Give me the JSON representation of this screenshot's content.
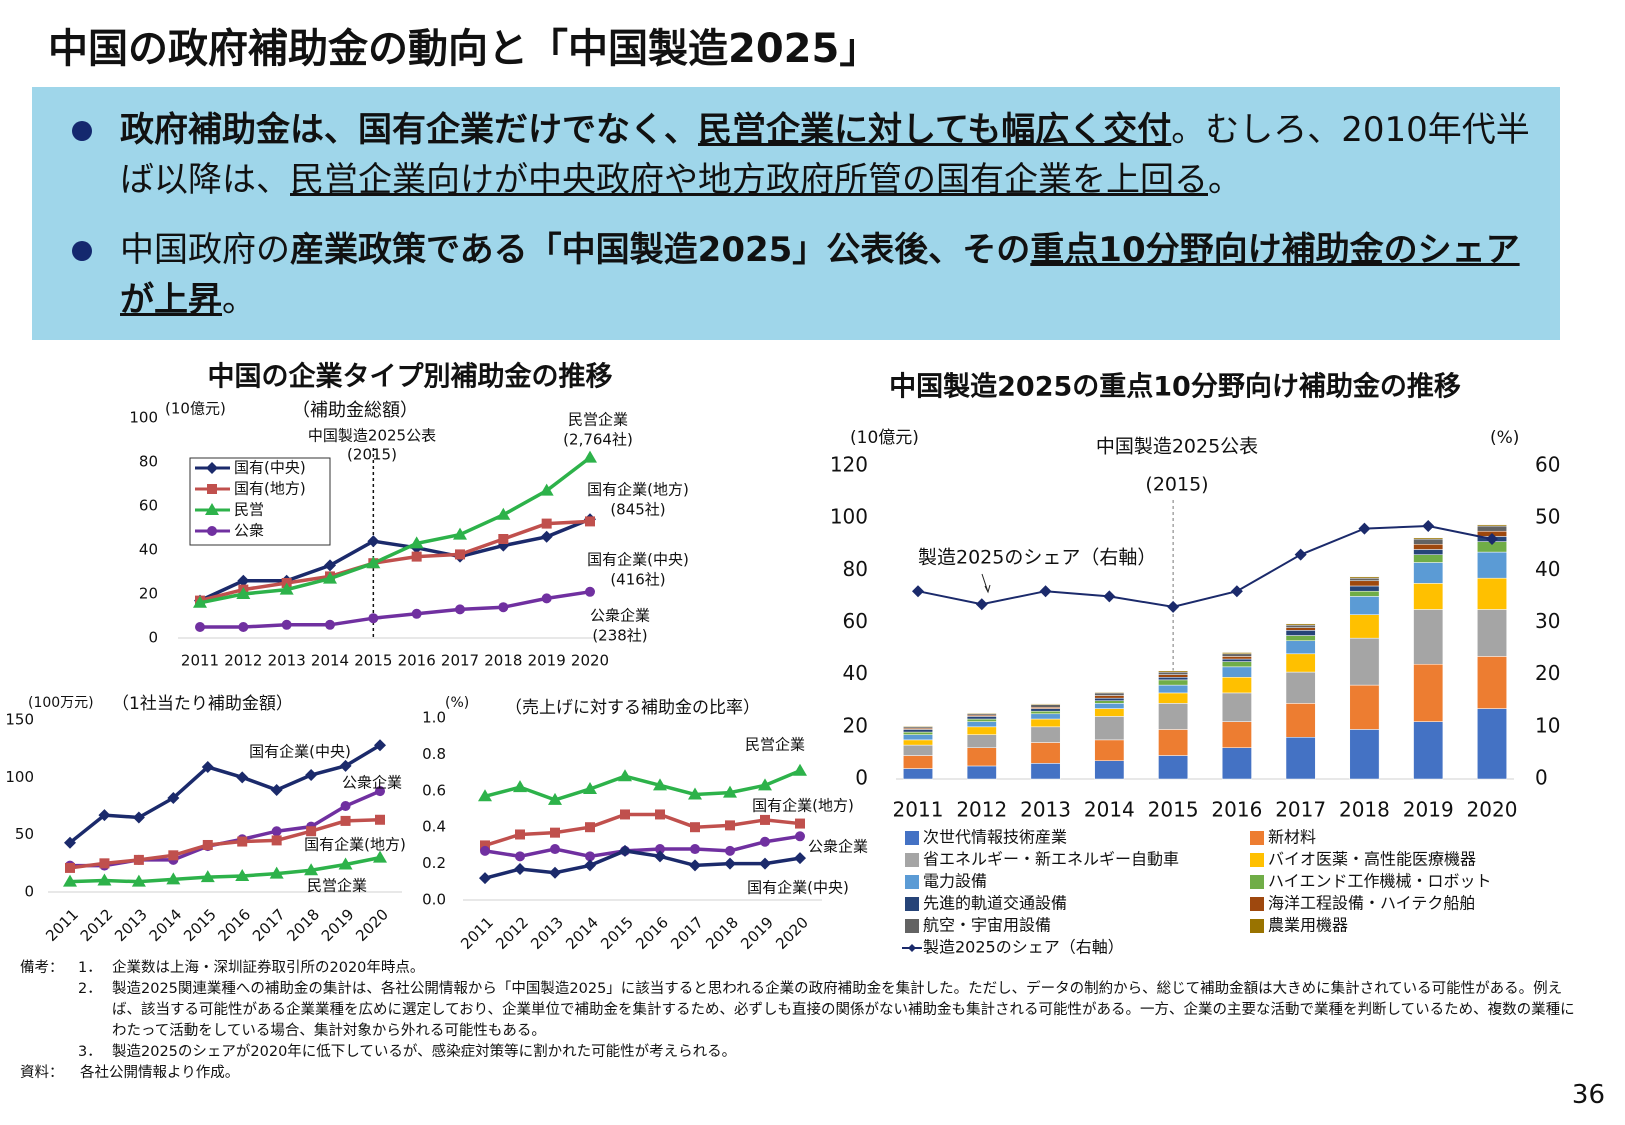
{
  "title": "中国の政府補助金の動向と「中国製造2025」",
  "bullets": [
    [
      "政府補助金は、国有企業だけでなく、",
      "民営企業に対しても幅広く交付",
      "。むしろ、2010年代半ば以降は、",
      "民営企業向けが中央政府や地方政府所管の国有企業を上回る",
      "。"
    ],
    [
      "中国政府の",
      "産業政策である「中国製造2025」公表後、その",
      "重点10分野向け補助金のシェアが上昇",
      "。"
    ]
  ],
  "chart_data": [
    {
      "type": "line",
      "title": "中国の企業タイプ別補助金の推移",
      "subtitle": "（補助金総額）",
      "y_unit": "(10億元)",
      "categories": [
        "2011",
        "2012",
        "2013",
        "2014",
        "2015",
        "2016",
        "2017",
        "2018",
        "2019",
        "2020"
      ],
      "ylim": [
        0,
        100
      ],
      "yticks": [
        0,
        20,
        40,
        60,
        80,
        100
      ],
      "series": [
        {
          "name": "国有(中央)",
          "color": "#1b2a6b",
          "marker": "diamond",
          "values": [
            17,
            26,
            26,
            33,
            44,
            41,
            37,
            42,
            46,
            54
          ]
        },
        {
          "name": "国有(地方)",
          "color": "#c0504d",
          "marker": "square",
          "values": [
            17,
            22,
            25,
            28,
            34,
            37,
            38,
            45,
            52,
            53
          ]
        },
        {
          "name": "民営",
          "color": "#2db24a",
          "marker": "triangle",
          "values": [
            16,
            20,
            22,
            27,
            34,
            43,
            47,
            56,
            67,
            82
          ]
        },
        {
          "name": "公衆",
          "color": "#7030a0",
          "marker": "circle",
          "values": [
            5,
            5,
            6,
            6,
            9,
            11,
            13,
            14,
            18,
            21
          ]
        }
      ],
      "annotations": [
        [
          "中国製造2025公表",
          "(2015)"
        ],
        [
          "民営企業",
          "(2,764社)"
        ],
        [
          "国有企業(地方)",
          "(845社)"
        ],
        [
          "国有企業(中央)",
          "(416社)"
        ],
        [
          "公衆企業",
          "(238社)"
        ]
      ]
    },
    {
      "type": "line",
      "subtitle": "（1社当たり補助金額）",
      "y_unit": "(100万元)",
      "categories": [
        "2011",
        "2012",
        "2013",
        "2014",
        "2015",
        "2016",
        "2017",
        "2018",
        "2019",
        "2020"
      ],
      "ylim": [
        0,
        150
      ],
      "yticks": [
        0,
        50,
        100,
        150
      ],
      "series": [
        {
          "name": "国有企業(中央)",
          "color": "#1b2a6b",
          "marker": "diamond",
          "values": [
            43,
            67,
            65,
            82,
            109,
            100,
            89,
            102,
            110,
            128
          ]
        },
        {
          "name": "公衆企業",
          "color": "#7030a0",
          "marker": "circle",
          "values": [
            23,
            23,
            28,
            28,
            40,
            46,
            53,
            57,
            75,
            88
          ]
        },
        {
          "name": "国有企業(地方)",
          "color": "#c0504d",
          "marker": "square",
          "values": [
            21,
            25,
            28,
            32,
            41,
            44,
            45,
            53,
            62,
            63
          ]
        },
        {
          "name": "民営企業",
          "color": "#2db24a",
          "marker": "triangle",
          "values": [
            9,
            10,
            9,
            11,
            13,
            14,
            16,
            19,
            24,
            30
          ]
        }
      ]
    },
    {
      "type": "line",
      "subtitle": "（売上げに対する補助金の比率）",
      "y_unit": "(%)",
      "categories": [
        "2011",
        "2012",
        "2013",
        "2014",
        "2015",
        "2016",
        "2017",
        "2018",
        "2019",
        "2020"
      ],
      "ylim": [
        0,
        1
      ],
      "yticks": [
        {
          "value": 0,
          "label": "0.0"
        },
        0.2,
        0.4,
        0.6,
        0.8,
        {
          "value": 1,
          "label": "1.0"
        }
      ],
      "series": [
        {
          "name": "民営企業",
          "color": "#2db24a",
          "marker": "triangle",
          "values": [
            0.57,
            0.62,
            0.55,
            0.61,
            0.68,
            0.63,
            0.58,
            0.59,
            0.63,
            0.71
          ]
        },
        {
          "name": "国有企業(地方)",
          "color": "#c0504d",
          "marker": "square",
          "values": [
            0.3,
            0.36,
            0.37,
            0.4,
            0.47,
            0.47,
            0.4,
            0.41,
            0.44,
            0.42
          ]
        },
        {
          "name": "公衆企業",
          "color": "#7030a0",
          "marker": "circle",
          "values": [
            0.27,
            0.24,
            0.28,
            0.24,
            0.27,
            0.28,
            0.28,
            0.27,
            0.32,
            0.35
          ]
        },
        {
          "name": "国有企業(中央)",
          "color": "#1b2a6b",
          "marker": "diamond",
          "values": [
            0.12,
            0.17,
            0.15,
            0.19,
            0.27,
            0.24,
            0.19,
            0.2,
            0.2,
            0.23
          ]
        }
      ]
    },
    {
      "type": "bar",
      "stacked": true,
      "title": "中国製造2025の重点10分野向け補助金の推移",
      "y_unit": "(10億元)",
      "y2_unit": "(%)",
      "categories": [
        "2011",
        "2012",
        "2013",
        "2014",
        "2015",
        "2016",
        "2017",
        "2018",
        "2019",
        "2020"
      ],
      "ylim": [
        0,
        120
      ],
      "yticks": [
        0,
        20,
        40,
        60,
        80,
        100,
        120
      ],
      "y2lim": [
        0,
        60
      ],
      "y2ticks": [
        0,
        10,
        20,
        30,
        40,
        50,
        60
      ],
      "series": [
        {
          "name": "次世代情報技術産業",
          "color": "#4472c4",
          "values": [
            4,
            5,
            6,
            7,
            9,
            12,
            16,
            19,
            22,
            27
          ]
        },
        {
          "name": "新材料",
          "color": "#ed7d31",
          "values": [
            5,
            7,
            8,
            8,
            10,
            10,
            13,
            17,
            22,
            20
          ]
        },
        {
          "name": "省エネルギー・新エネルギー自動車",
          "color": "#a5a5a5",
          "values": [
            4,
            5,
            6,
            9,
            10,
            11,
            12,
            18,
            21,
            18
          ]
        },
        {
          "name": "バイオ医薬・高性能医療機器",
          "color": "#ffc000",
          "values": [
            2,
            3,
            3,
            3,
            4,
            6,
            7,
            9,
            10,
            12
          ]
        },
        {
          "name": "電力設備",
          "color": "#5b9bd5",
          "values": [
            2,
            2,
            2,
            2,
            3,
            4,
            5,
            7,
            8,
            10
          ]
        },
        {
          "name": "ハイエンド工作機械・ロボット",
          "color": "#70ad47",
          "values": [
            1,
            1,
            1,
            1,
            2,
            2,
            2,
            2,
            3,
            4
          ]
        },
        {
          "name": "先進的軌道交通設備",
          "color": "#264478",
          "values": [
            1,
            1,
            1,
            1,
            1,
            1,
            2,
            2,
            2,
            2
          ]
        },
        {
          "name": "海洋工程設備・ハイテク船舶",
          "color": "#9e480e",
          "values": [
            0.5,
            0.5,
            0.5,
            1,
            1,
            1,
            1,
            2,
            2,
            2
          ]
        },
        {
          "name": "航空・宇宙用設備",
          "color": "#636363",
          "values": [
            0.5,
            0.5,
            1,
            1,
            1,
            1,
            1,
            1,
            2,
            2
          ]
        },
        {
          "name": "農業用機器",
          "color": "#997300",
          "values": [
            0.3,
            0.3,
            0.3,
            0.3,
            0.5,
            0.5,
            0.5,
            0.5,
            0.5,
            0.5
          ]
        },
        {
          "name": "製造2025のシェア（右軸）",
          "type": "line",
          "axis": "y2",
          "color": "#1b2a6b",
          "marker": "diamond",
          "values": [
            36,
            33.5,
            36,
            35,
            33,
            36,
            43,
            48,
            48.5,
            46
          ]
        }
      ],
      "annotations": [
        [
          "中国製造2025公表",
          "(2015)"
        ],
        [
          "製造2025のシェア（右軸）"
        ]
      ]
    }
  ],
  "notes": {
    "label": "備考：",
    "items": [
      {
        "number": "1．",
        "text": "企業数は上海・深圳証券取引所の2020年時点。"
      },
      {
        "number": "2．",
        "text": "製造2025関連業種への補助金の集計は、各社公開情報から「中国製造2025」に該当すると思われる企業の政府補助金を集計した。ただし、データの制約から、総じて補助金額は大きめに集計されている可能性がある。例えば、該当する可能性がある企業業種を広めに選定しており、企業単位で補助金を集計するため、必ずしも直接の関係がない補助金も集計される可能性がある。一方、企業の主要な活動で業種を判断しているため、複数の業種にわたって活動をしている場合、集計対象から外れる可能性もある。"
      },
      {
        "number": "3．",
        "text": "製造2025のシェアが2020年に低下しているが、感染症対策等に割かれた可能性が考えられる。"
      }
    ]
  },
  "source": {
    "label": "資料：",
    "text": "各社公開情報より作成。"
  },
  "page_number": "36"
}
